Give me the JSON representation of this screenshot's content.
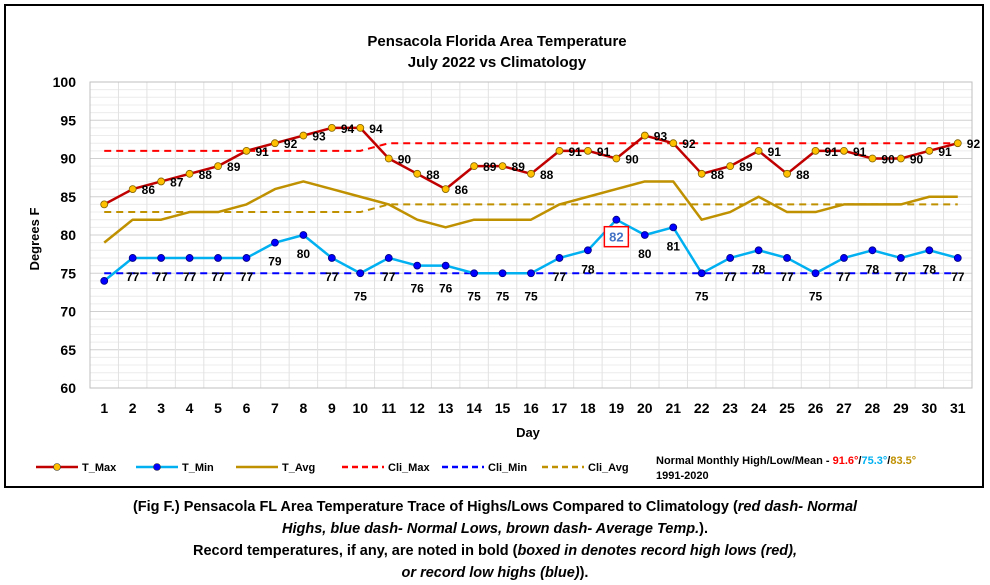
{
  "chart_data": {
    "type": "line",
    "title": "Pensacola Florida Area Temperature",
    "subtitle": "July 2022 vs Climatology",
    "xlabel": "Day",
    "ylabel": "Degrees F",
    "ylim": [
      60,
      100
    ],
    "yticks": [
      60,
      65,
      70,
      75,
      80,
      85,
      90,
      95,
      100
    ],
    "x": [
      1,
      2,
      3,
      4,
      5,
      6,
      7,
      8,
      9,
      10,
      11,
      12,
      13,
      14,
      15,
      16,
      17,
      18,
      19,
      20,
      21,
      22,
      23,
      24,
      25,
      26,
      27,
      28,
      29,
      30,
      31
    ],
    "grid": true,
    "legend_position": "bottom",
    "series": [
      {
        "name": "T_Max",
        "color": "#c00000",
        "marker_fill": "#ffc000",
        "style": "solid-marker",
        "values": [
          84,
          86,
          87,
          88,
          89,
          91,
          92,
          93,
          94,
          94,
          90,
          88,
          86,
          89,
          89,
          88,
          91,
          91,
          90,
          93,
          92,
          88,
          89,
          91,
          88,
          91,
          91,
          90,
          90,
          91,
          92
        ]
      },
      {
        "name": "T_Min",
        "color": "#00b0f0",
        "marker_fill": "#0000ff",
        "style": "solid-marker",
        "values": [
          74,
          77,
          77,
          77,
          77,
          77,
          79,
          80,
          77,
          75,
          77,
          76,
          76,
          75,
          75,
          75,
          77,
          78,
          82,
          80,
          81,
          75,
          77,
          78,
          77,
          75,
          77,
          78,
          77,
          78,
          77
        ]
      },
      {
        "name": "T_Avg",
        "color": "#bf9000",
        "style": "solid",
        "values": [
          79,
          82,
          82,
          83,
          83,
          84,
          86,
          87,
          86,
          85,
          84,
          82,
          81,
          82,
          82,
          82,
          84,
          85,
          86,
          87,
          87,
          82,
          83,
          85,
          83,
          83,
          84,
          84,
          84,
          85,
          85
        ]
      },
      {
        "name": "Cli_Max",
        "color": "#ff0000",
        "style": "dashed",
        "values": [
          91,
          91,
          91,
          91,
          91,
          91,
          91,
          91,
          91,
          91,
          92,
          92,
          92,
          92,
          92,
          92,
          92,
          92,
          92,
          92,
          92,
          92,
          92,
          92,
          92,
          92,
          92,
          92,
          92,
          92,
          92
        ]
      },
      {
        "name": "Cli_Min",
        "color": "#0000ff",
        "style": "dashed",
        "values": [
          75,
          75,
          75,
          75,
          75,
          75,
          75,
          75,
          75,
          75,
          75,
          75,
          75,
          75,
          75,
          75,
          75,
          75,
          75,
          75,
          75,
          75,
          75,
          75,
          75,
          75,
          75,
          75,
          75,
          75,
          75
        ]
      },
      {
        "name": "Cli_Avg",
        "color": "#bf9000",
        "style": "dashed",
        "values": [
          83,
          83,
          83,
          83,
          83,
          83,
          83,
          83,
          83,
          83,
          84,
          84,
          84,
          84,
          84,
          84,
          84,
          84,
          84,
          84,
          84,
          84,
          84,
          84,
          84,
          84,
          84,
          84,
          84,
          84,
          84
        ]
      }
    ],
    "annotations": [
      {
        "text": "82",
        "day": 19,
        "value": 82,
        "note": "boxed record high low",
        "color": "#4472c4",
        "box_color": "#ff0000"
      }
    ],
    "normals_note": {
      "label": "Normal Monthly High/Low/Mean - ",
      "high": "91.6°",
      "low": "75.3°",
      "mean": "83.5°",
      "high_color": "#ff0000",
      "low_color": "#00b0f0",
      "mean_color": "#bf9000",
      "period": "1991-2020"
    }
  },
  "caption": {
    "line1_a": "(Fig F.) Pensacola FL Area Temperature Trace of Highs/Lows Compared to Climatology (",
    "line1_i": "red dash- Normal",
    "line2_i": "Highs, blue dash- Normal Lows, brown dash- Average Temp.",
    "line2_b": ").",
    "line3_a": "Record temperatures, if any, are noted in bold (",
    "line3_i": "boxed in denotes record high lows (red),",
    "line4_i": "or record low highs (blue)",
    "line4_b": ")."
  }
}
